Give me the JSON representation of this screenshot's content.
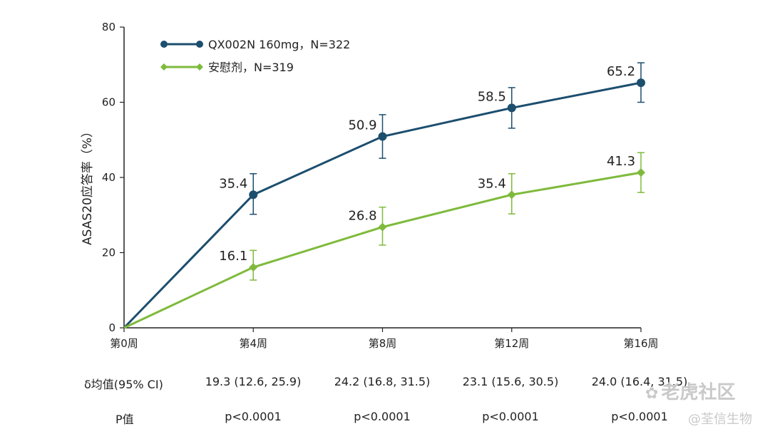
{
  "chart_data": {
    "type": "line",
    "ylabel": "ASAS20应答率（%）",
    "xlabel": "",
    "ylim": [
      0,
      80
    ],
    "yticks": [
      0,
      20,
      40,
      60,
      80
    ],
    "categories": [
      "第0周",
      "第4周",
      "第8周",
      "第12周",
      "第16周"
    ],
    "x_weeks": [
      0,
      4,
      8,
      12,
      16
    ],
    "grid": false,
    "legend_position": "top-left",
    "series": [
      {
        "name": "QX002N 160mg，N=322",
        "color": "#1c4e6e",
        "marker": "circle",
        "values": [
          0,
          35.4,
          50.9,
          58.5,
          65.2
        ],
        "labels": [
          "",
          "35.4",
          "50.9",
          "58.5",
          "65.2"
        ],
        "err_low": [
          0,
          30.2,
          45.1,
          53.1,
          60.0
        ],
        "err_high": [
          0,
          41.0,
          56.7,
          63.9,
          70.5
        ]
      },
      {
        "name": "安慰剂，N=319",
        "color": "#7fba3c",
        "marker": "diamond",
        "values": [
          0,
          16.1,
          26.8,
          35.4,
          41.3
        ],
        "labels": [
          "",
          "16.1",
          "26.8",
          "35.4",
          "41.3"
        ],
        "err_low": [
          0,
          12.7,
          22.0,
          30.3,
          36.0
        ],
        "err_high": [
          0,
          20.6,
          32.1,
          41.0,
          46.6
        ]
      }
    ]
  },
  "stats": {
    "delta_label": "δ均值(95% CI)",
    "delta_values": [
      "19.3 (12.6, 25.9)",
      "24.2 (16.8, 31.5)",
      "23.1 (15.6, 30.5)",
      "24.0 (16.4, 31.5)"
    ],
    "p_label": "P值",
    "p_values": [
      "p<0.0001",
      "p<0.0001",
      "p<0.0001",
      "p<0.0001"
    ]
  },
  "watermarks": {
    "top": "老虎社区",
    "bottom": "@荃信生物"
  }
}
